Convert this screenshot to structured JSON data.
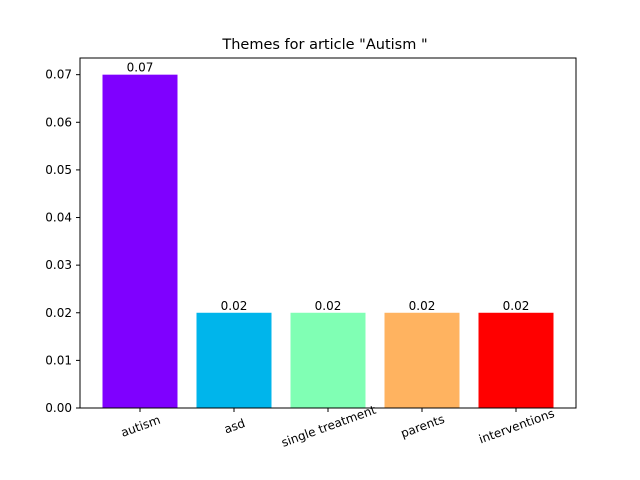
{
  "chart_data": {
    "type": "bar",
    "title": "Themes for article \"Autism \"",
    "xlabel": "",
    "ylabel": "",
    "categories": [
      "autism",
      "asd",
      "single treatment",
      "parents",
      "interventions"
    ],
    "values": [
      0.07,
      0.02,
      0.02,
      0.02,
      0.02
    ],
    "value_labels": [
      "0.07",
      "0.02",
      "0.02",
      "0.02",
      "0.02"
    ],
    "colors": [
      "#7f00ff",
      "#00b5eb",
      "#80ffb4",
      "#ffb360",
      "#ff0000"
    ],
    "ylim": [
      0,
      0.07
    ],
    "yticks": [
      0.0,
      0.01,
      0.02,
      0.03,
      0.04,
      0.05,
      0.06,
      0.07
    ],
    "ytick_labels": [
      "0.00",
      "0.01",
      "0.02",
      "0.03",
      "0.04",
      "0.05",
      "0.06",
      "0.07"
    ],
    "xtick_rotation_deg": -20,
    "grid": false,
    "legend": "none"
  }
}
